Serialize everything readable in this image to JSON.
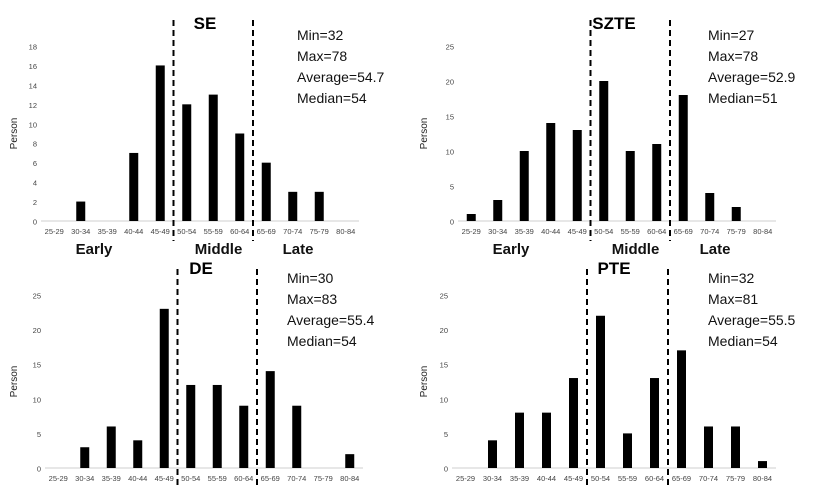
{
  "phases": [
    "Early",
    "Middle",
    "Late"
  ],
  "chart_data": [
    {
      "type": "bar",
      "title": "SE",
      "ylabel": "Person",
      "ylim": [
        0,
        18
      ],
      "yticks": [
        0,
        2,
        4,
        6,
        8,
        10,
        12,
        14,
        16,
        18
      ],
      "categories": [
        "25-29",
        "30-34",
        "35-39",
        "40-44",
        "45-49",
        "50-54",
        "55-59",
        "60-64",
        "65-69",
        "70-74",
        "75-79",
        "80-84"
      ],
      "values": [
        0,
        2,
        0,
        7,
        16,
        12,
        13,
        9,
        6,
        3,
        3,
        0
      ],
      "stats": [
        "Min=32",
        "Max=78",
        "Average=54.7",
        "Median=54"
      ],
      "dividers": [
        50,
        65
      ]
    },
    {
      "type": "bar",
      "title": "SZTE",
      "ylabel": "Person",
      "ylim": [
        0,
        25
      ],
      "yticks": [
        0,
        5,
        10,
        15,
        20,
        25
      ],
      "categories": [
        "25-29",
        "30-34",
        "35-39",
        "40-44",
        "45-49",
        "50-54",
        "55-59",
        "60-64",
        "65-69",
        "70-74",
        "75-79",
        "80-84"
      ],
      "values": [
        1,
        3,
        10,
        14,
        13,
        20,
        10,
        11,
        18,
        4,
        2,
        0
      ],
      "stats": [
        "Min=27",
        "Max=78",
        "Average=52.9",
        "Median=51"
      ],
      "dividers": [
        50,
        65
      ]
    },
    {
      "type": "bar",
      "title": "DE",
      "ylabel": "Person",
      "ylim": [
        0,
        25
      ],
      "yticks": [
        0,
        5,
        10,
        15,
        20,
        25
      ],
      "categories": [
        "25-29",
        "30-34",
        "35-39",
        "40-44",
        "45-49",
        "50-54",
        "55-59",
        "60-64",
        "65-69",
        "70-74",
        "75-79",
        "80-84"
      ],
      "values": [
        0,
        3,
        6,
        4,
        23,
        12,
        12,
        9,
        14,
        9,
        0,
        2
      ],
      "stats": [
        "Min=30",
        "Max=83",
        "Average=55.4",
        "Median=54"
      ],
      "dividers": [
        50,
        65
      ]
    },
    {
      "type": "bar",
      "title": "PTE",
      "ylabel": "Person",
      "ylim": [
        0,
        25
      ],
      "yticks": [
        0,
        5,
        10,
        15,
        20,
        25
      ],
      "categories": [
        "25-29",
        "30-34",
        "35-39",
        "40-44",
        "45-49",
        "50-54",
        "55-59",
        "60-64",
        "65-69",
        "70-74",
        "75-79",
        "80-84"
      ],
      "values": [
        0,
        4,
        8,
        8,
        13,
        22,
        5,
        13,
        17,
        6,
        6,
        1
      ],
      "stats": [
        "Min=32",
        "Max=81",
        "Average=55.5",
        "Median=54"
      ],
      "dividers": [
        50,
        65
      ]
    }
  ]
}
